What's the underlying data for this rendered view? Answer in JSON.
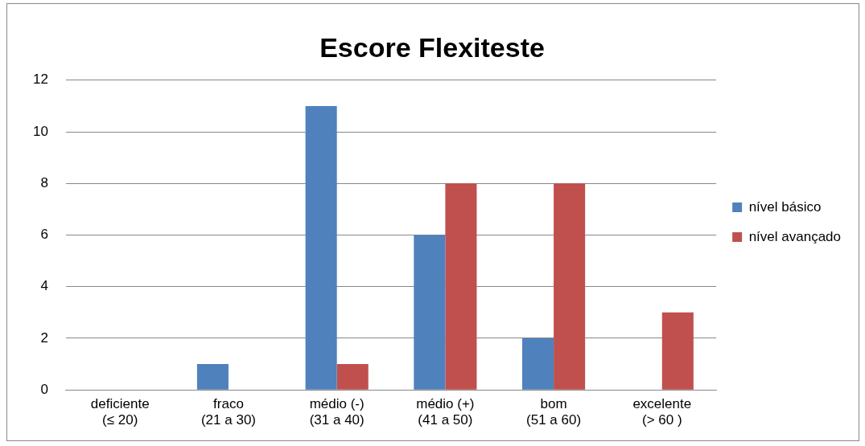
{
  "chart_data": {
    "type": "bar",
    "title": "Escore Flexiteste",
    "categories": [
      "deficiente\n(≤ 20)",
      "fraco\n(21 a 30)",
      "médio (-)\n(31 a 40)",
      "médio (+)\n(41 a 50)",
      "bom\n(51 a 60)",
      "excelente\n(> 60 )"
    ],
    "series": [
      {
        "name": "nível básico",
        "color": "#4f81bd",
        "values": [
          0,
          1,
          11,
          6,
          2,
          0
        ]
      },
      {
        "name": "nível avançado",
        "color": "#c0504d",
        "values": [
          0,
          0,
          1,
          8,
          8,
          3
        ]
      }
    ],
    "ylim": [
      0,
      12
    ],
    "yticks": [
      0,
      2,
      4,
      6,
      8,
      10,
      12
    ],
    "grid": "y",
    "legend": "right"
  }
}
